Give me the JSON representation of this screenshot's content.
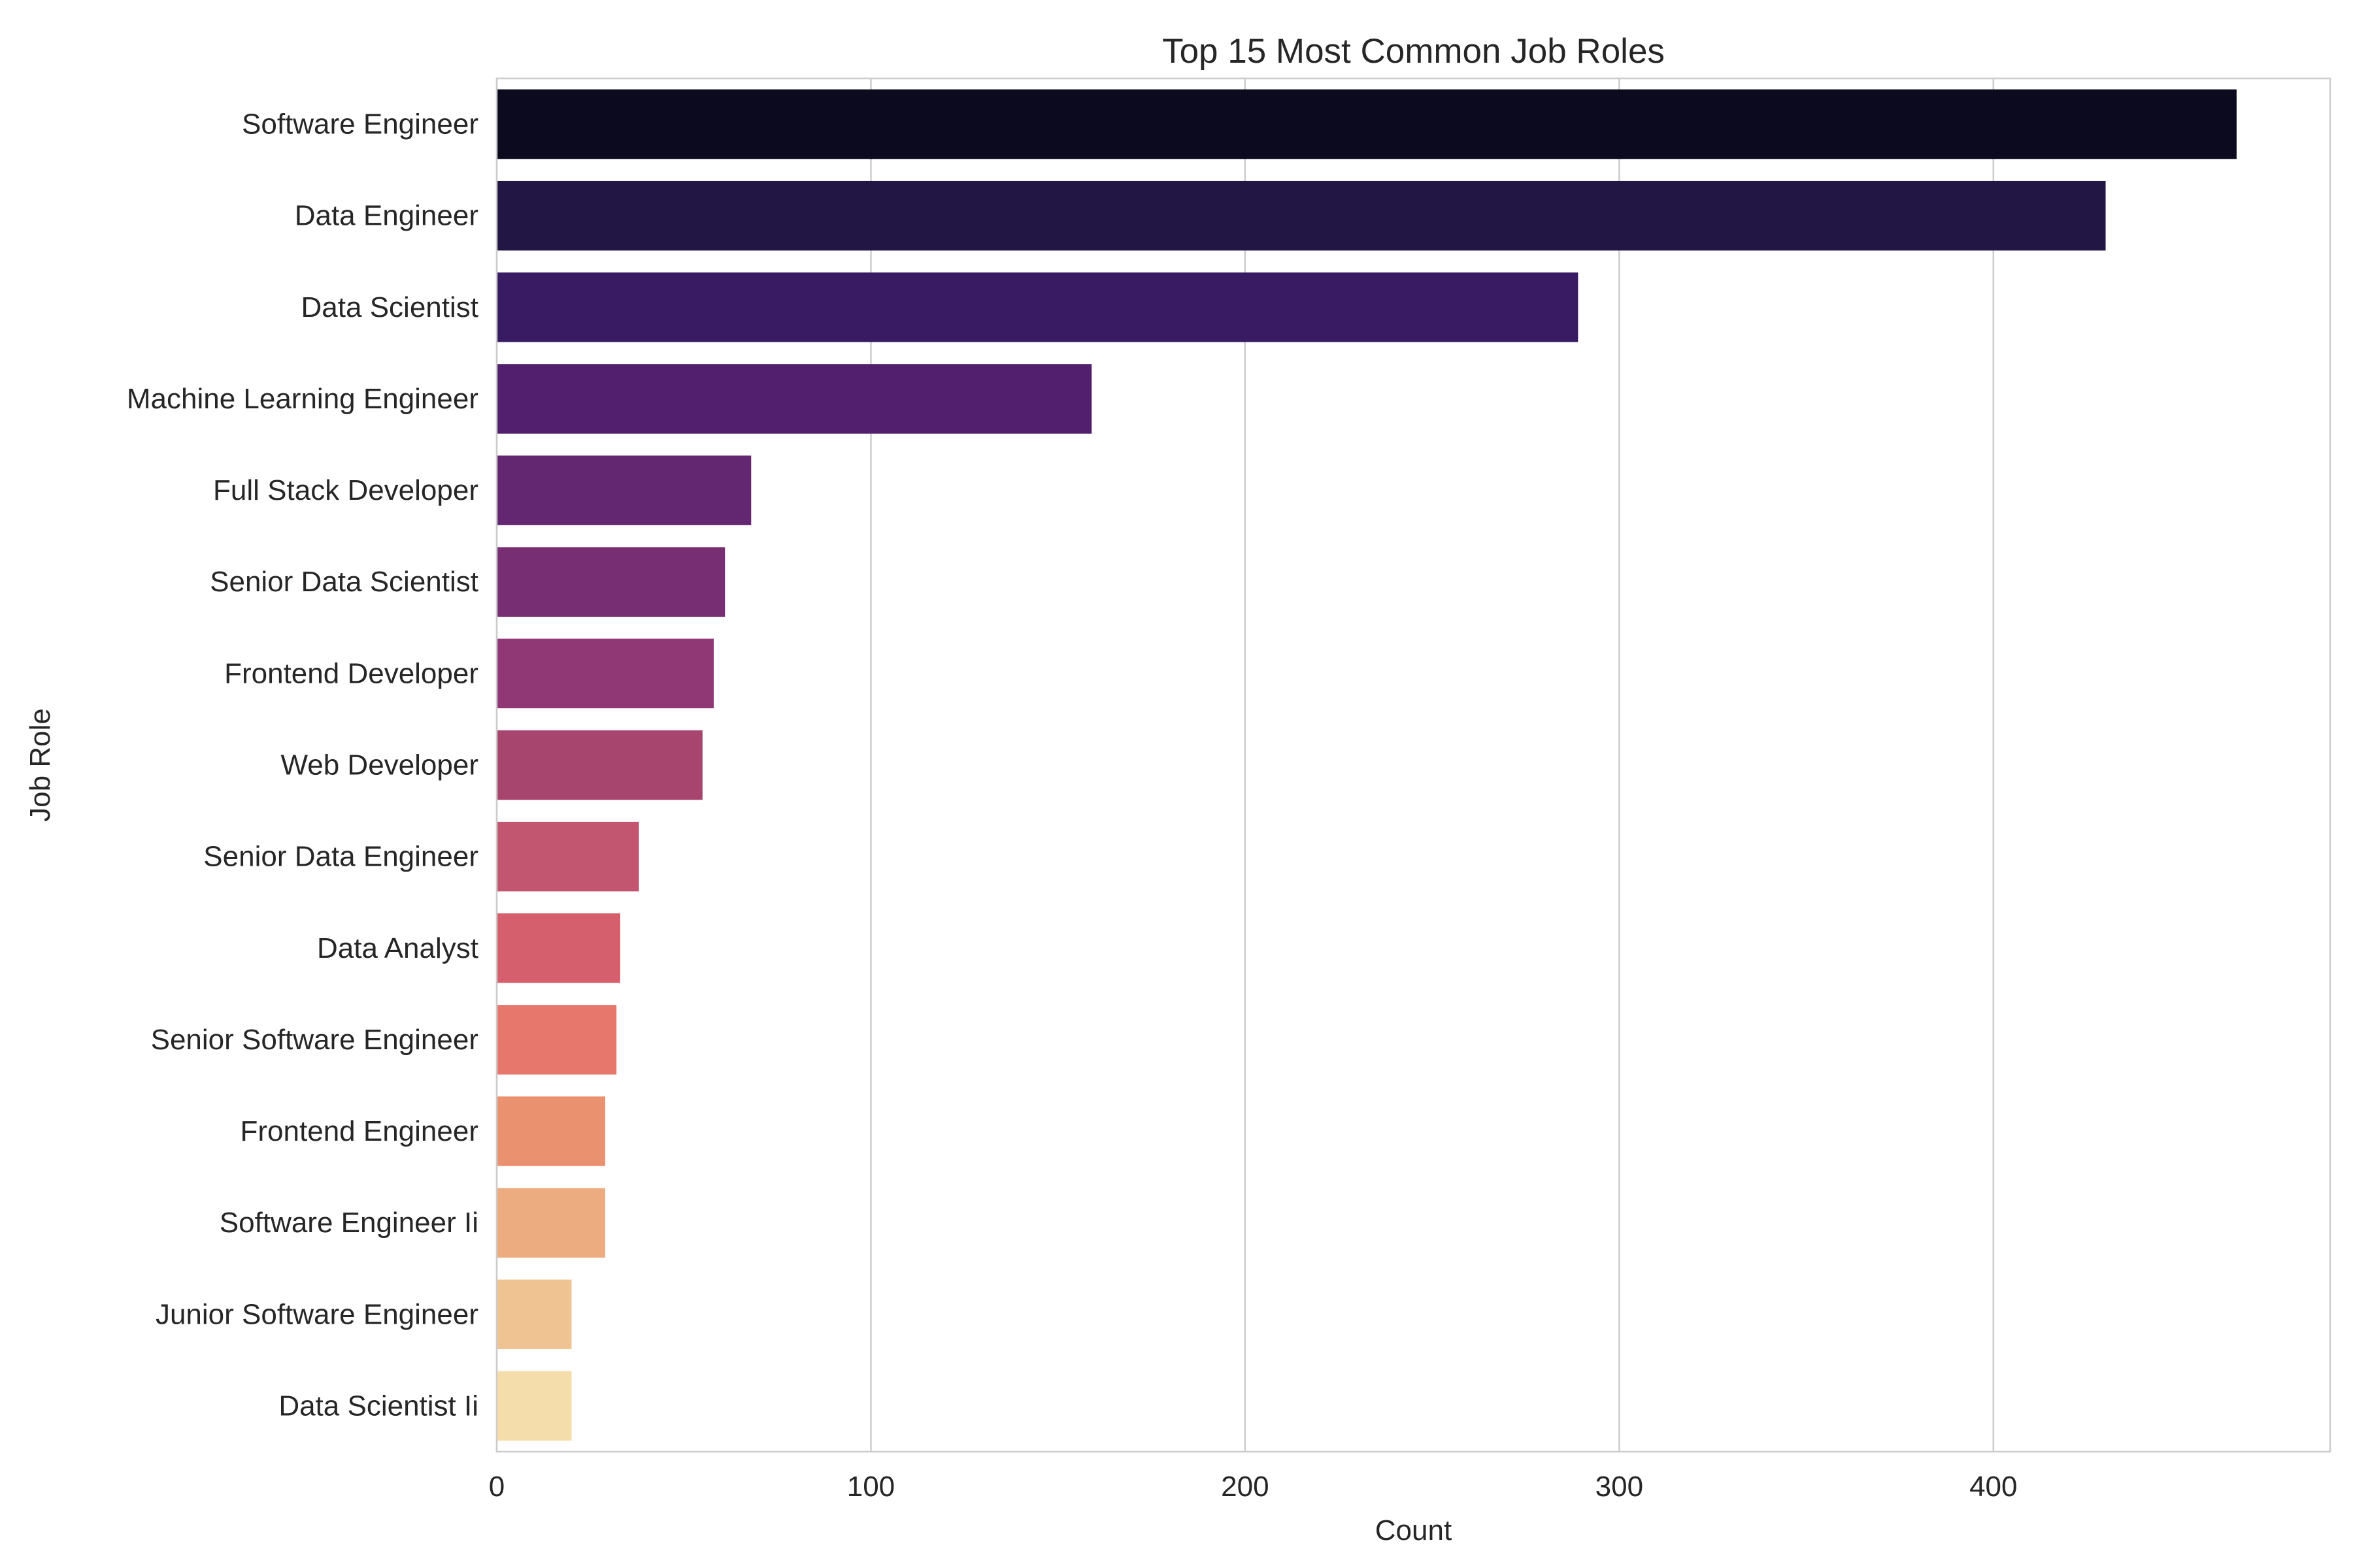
{
  "chart_data": {
    "type": "bar",
    "orientation": "horizontal",
    "title": "Top 15 Most Common Job Roles",
    "xlabel": "Count",
    "ylabel": "Job Role",
    "categories": [
      "Software Engineer",
      "Data Engineer",
      "Data Scientist",
      "Machine Learning Engineer",
      "Full Stack Developer",
      "Senior Data Scientist",
      "Frontend Developer",
      "Web Developer",
      "Senior Data Engineer",
      "Data Analyst",
      "Senior Software Engineer",
      "Frontend Engineer",
      "Software Engineer Ii",
      "Junior Software Engineer",
      "Data Scientist Ii"
    ],
    "values": [
      465,
      430,
      289,
      159,
      68,
      61,
      58,
      55,
      38,
      33,
      32,
      29,
      29,
      20,
      20
    ],
    "xlim": [
      0,
      490
    ],
    "xticks": [
      0,
      100,
      200,
      300,
      400
    ],
    "grid": true,
    "palette": "magma",
    "colors": [
      "#0c0a1f",
      "#221645",
      "#381b63",
      "#511f6d",
      "#632772",
      "#772e73",
      "#8f3875",
      "#a8456f",
      "#c2556f",
      "#d65f6d",
      "#e7766d",
      "#ea9170",
      "#edab80",
      "#f0c492",
      "#f4ddaa"
    ]
  }
}
